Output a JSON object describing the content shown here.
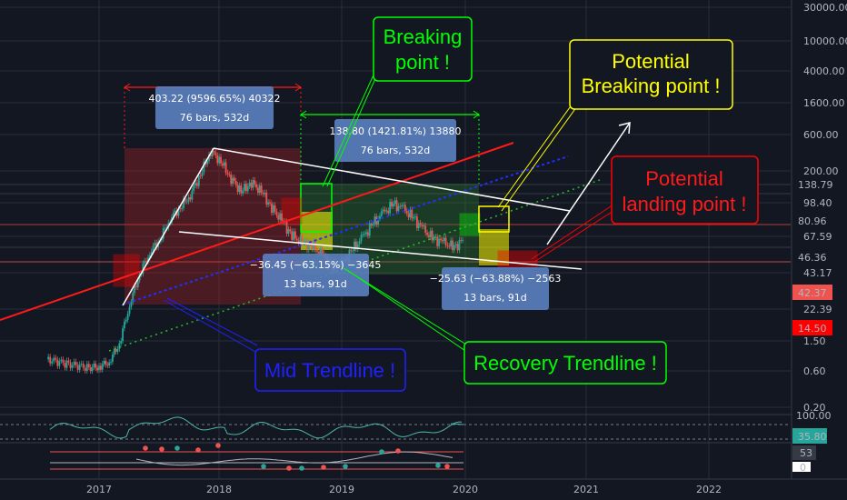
{
  "chart_data": {
    "type": "candlestick",
    "scale": "log",
    "grid": true,
    "ylim": [
      0.2,
      30000
    ],
    "y_ticks": [
      "30000.00",
      "10000.00",
      "4000.00",
      "1600.00",
      "600.00",
      "200.00",
      "98.40",
      "67.59",
      "43.17",
      "22.39",
      "1.50",
      "0.60",
      "0.20"
    ],
    "price_tags": [
      {
        "label": "138.79",
        "color": "#131722",
        "text": "#ffffff"
      },
      {
        "label": "80.96",
        "color": "#131722",
        "text": "#ffffff"
      },
      {
        "label": "46.36",
        "color": "#131722",
        "text": "#ffffff"
      },
      {
        "label": "42.37",
        "color": "#ef5350",
        "text": "#ffffff"
      },
      {
        "label": "14.50",
        "color": "#ff0000",
        "text": "#ffffff"
      }
    ],
    "x_ticks": [
      "2017",
      "2018",
      "2019",
      "2020",
      "2021",
      "2022"
    ],
    "series_close": [
      [
        "2016-08",
        4.2
      ],
      [
        "2016-10",
        3.8
      ],
      [
        "2016-12",
        3.5
      ],
      [
        "2017-01",
        3.6
      ],
      [
        "2017-02",
        4.0
      ],
      [
        "2017-03",
        6
      ],
      [
        "2017-04",
        14
      ],
      [
        "2017-05",
        28
      ],
      [
        "2017-06",
        45
      ],
      [
        "2017-07",
        60
      ],
      [
        "2017-08",
        95
      ],
      [
        "2017-09",
        120
      ],
      [
        "2017-10",
        160
      ],
      [
        "2017-11",
        250
      ],
      [
        "2017-12",
        420
      ],
      [
        "2018-01",
        330
      ],
      [
        "2018-02",
        230
      ],
      [
        "2018-03",
        170
      ],
      [
        "2018-04",
        210
      ],
      [
        "2018-05",
        170
      ],
      [
        "2018-06",
        120
      ],
      [
        "2018-07",
        90
      ],
      [
        "2018-08",
        65
      ],
      [
        "2018-09",
        55
      ],
      [
        "2018-10",
        52
      ],
      [
        "2018-11",
        42
      ],
      [
        "2018-12",
        32
      ],
      [
        "2019-01",
        35
      ],
      [
        "2019-02",
        48
      ],
      [
        "2019-03",
        62
      ],
      [
        "2019-04",
        85
      ],
      [
        "2019-05",
        105
      ],
      [
        "2019-06",
        130
      ],
      [
        "2019-07",
        115
      ],
      [
        "2019-08",
        95
      ],
      [
        "2019-09",
        72
      ],
      [
        "2019-10",
        60
      ],
      [
        "2019-11",
        55
      ],
      [
        "2019-12",
        50
      ],
      [
        "2020-01",
        60
      ]
    ],
    "rsi": {
      "value_label": "35.80",
      "ticks": [
        "100.00"
      ]
    },
    "macd": {
      "value_label": "53",
      "ticks": [
        "0"
      ]
    }
  },
  "measures": [
    {
      "line1": "403.22 (9596.65%) 40322",
      "line2": "76 bars, 532d"
    },
    {
      "line1": "138.80 (1421.81%) 13880",
      "line2": "76 bars, 532d"
    },
    {
      "line1": "−36.45 (−63.15%) −3645",
      "line2": "13 bars, 91d"
    },
    {
      "line1": "−25.63 (−63.88%) −2563",
      "line2": "13 bars, 91d"
    }
  ],
  "notes": {
    "breaking": [
      "Breaking",
      "point !"
    ],
    "potential_breaking": [
      "Potential",
      "Breaking point !"
    ],
    "potential_landing": [
      "Potential",
      "landing point !"
    ],
    "recovery": "Recovery Trendline !",
    "mid": "Mid Trendline !"
  },
  "colors": {
    "background": "#131722",
    "up": "#26a69a",
    "down": "#ef5350",
    "green_note": "#00ff00",
    "yellow_note": "#ffff00",
    "red_note": "#ff0000",
    "blue_note": "#2020ff",
    "measure_box": "#5b80c0"
  }
}
